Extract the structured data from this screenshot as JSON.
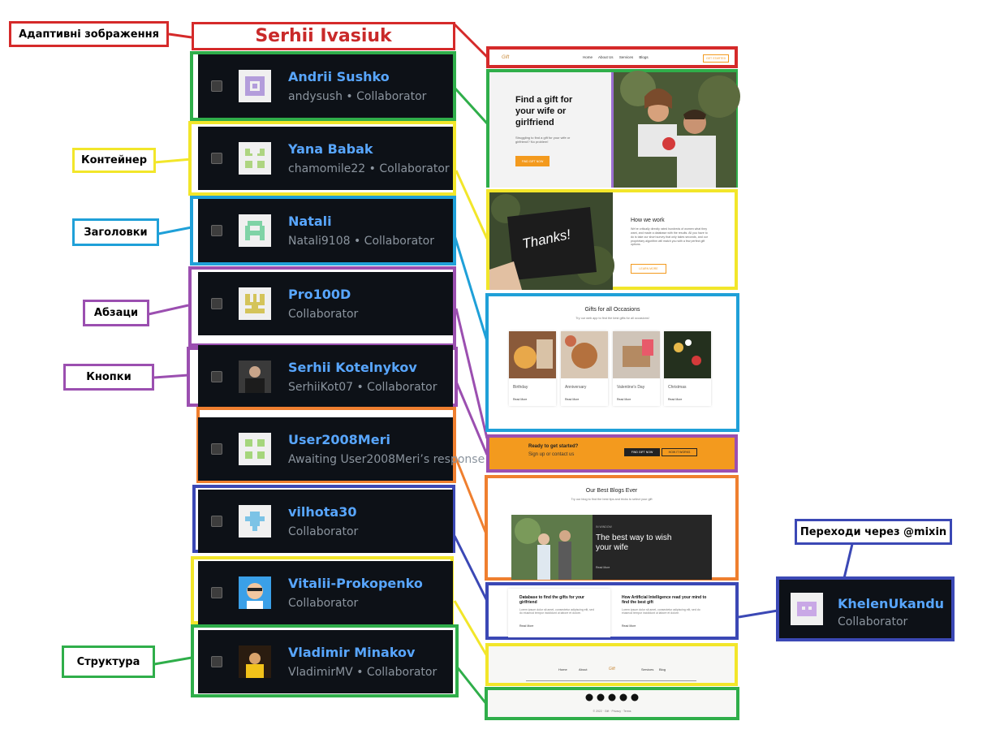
{
  "labels": {
    "adaptive_images": "Адаптивні зображення",
    "container": "Контейнер",
    "headings": "Заголовки",
    "paragraphs": "Абзаци",
    "buttons": "Кнопки",
    "structure": "Структура",
    "mixin_transitions": "Переходи через @mixin"
  },
  "title": "Serhii Ivasiuk",
  "collaborators": [
    {
      "name": "Andrii Sushko",
      "sub": "andysush • Collaborator"
    },
    {
      "name": "Yana Babak",
      "sub": "chamomile22 • Collaborator"
    },
    {
      "name": "Natali",
      "sub": "Natali9108 • Collaborator"
    },
    {
      "name": "Pro100D",
      "sub": "Collaborator"
    },
    {
      "name": "Serhii Kotelnykov",
      "sub": "SerhiiKot07 • Collaborator"
    },
    {
      "name": "User2008Meri",
      "sub": "Awaiting User2008Meri’s response"
    },
    {
      "name": "vilhota30",
      "sub": "Collaborator"
    },
    {
      "name": "Vitalii-Prokopenko",
      "sub": "Collaborator"
    },
    {
      "name": "Vladimir Minakov",
      "sub": "VladimirMV • Collaborator"
    }
  ],
  "extra_collaborator": {
    "name": "KhelenUkandu",
    "sub": "Collaborator"
  },
  "colors": {
    "red": "#d52a2a",
    "green": "#2fae4a",
    "yellow": "#f2e62a",
    "blue": "#1fa0d8",
    "purple": "#9b4fb0",
    "orange": "#ef7f2f",
    "navy": "#3b48b5",
    "github_bg": "#0d1117",
    "link_blue": "#58a6ff",
    "muted": "#8b949e",
    "site_orange": "#f39a1e"
  },
  "site": {
    "logo": "Gift",
    "nav": [
      "Home",
      "About Us",
      "Services",
      "Blogs"
    ],
    "nav_button": "GET STARTED",
    "hero": {
      "heading": "Find a gift for your wife or girlfriend",
      "text": "Struggling to find a gift for your wife or girlfriend? No problem!",
      "button": "FIND GIFT NOW"
    },
    "how": {
      "card_text": "Thanks!",
      "heading": "How we work",
      "text": "We've critically directly rated hundreds of women what they want, and made a database with the results. All you have to do is take our short survey that only takes seconds, and our proprietary algorithm will match you with a few perfect gift options.",
      "button": "LEARN MORE"
    },
    "occasions": {
      "heading": "Gifts for all Occasions",
      "sub": "Try our web app to find the best gifts for all occasions!",
      "items": [
        "Birthday",
        "Anniversary",
        "Valentine's Day",
        "Christmas"
      ],
      "read_more": "Read More"
    },
    "cta": {
      "heading": "Ready to get started?",
      "sub": "Sign up or contact us",
      "btn1": "FIND GIFT NOW",
      "btn2": "HOW IT WORKS"
    },
    "blogs": {
      "heading": "Our Best Blogs Ever",
      "sub": "Try our blog to find the best tips and tricks to select your gift",
      "category": "IN WINDOW",
      "feature": "The best way to wish your wife",
      "read_more": "Read More"
    },
    "articles": [
      {
        "title": "Database to find the gifts for your girlfriend",
        "text": "Lorem ipsum dolor sit amet, consectetur adipiscing elit, sed do eiusmod tempor incididunt ut labore et dolore.",
        "link": "Read More"
      },
      {
        "title": "How Artificial Intelligence read your mind to find the best gift",
        "text": "Lorem ipsum dolor sit amet, consectetur adipiscing elit, sed do eiusmod tempor incididunt ut labore et dolore.",
        "link": "Read More"
      }
    ],
    "footer_nav": [
      "Home",
      "About",
      "Services",
      "Blog"
    ],
    "copyright": "© 2022 · Gift · Privacy · Terms"
  }
}
